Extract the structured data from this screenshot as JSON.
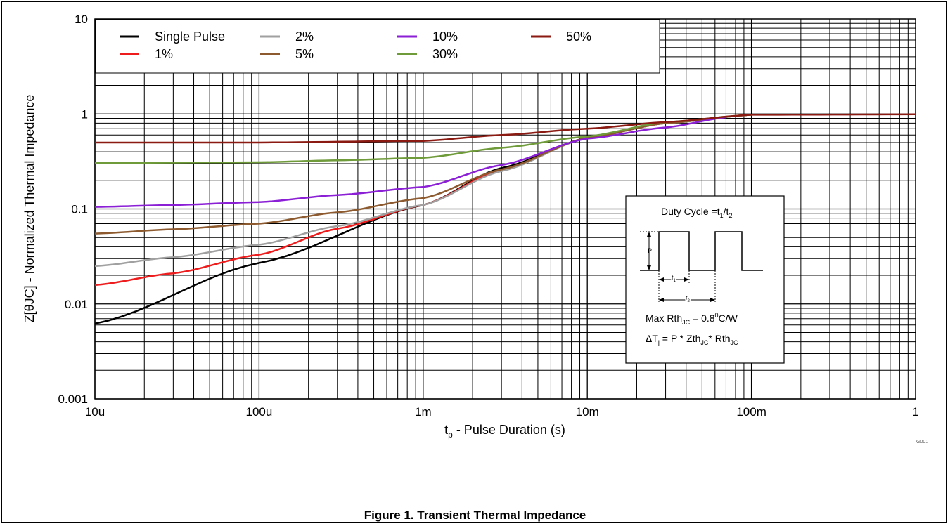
{
  "chart_data": {
    "type": "line",
    "xlabel": "t",
    "xlabel_sub": "p",
    "xlabel_rest": " - Pulse Duration (s)",
    "ylabel": "Z[θJC] - Normalized Thermal Impedance",
    "x_scale": "log",
    "y_scale": "log",
    "xlim": [
      1e-05,
      1
    ],
    "ylim": [
      0.001,
      10
    ],
    "x_ticks": [
      {
        "value": 1e-05,
        "label": "10u"
      },
      {
        "value": 0.0001,
        "label": "100u"
      },
      {
        "value": 0.001,
        "label": "1m"
      },
      {
        "value": 0.01,
        "label": "10m"
      },
      {
        "value": 0.1,
        "label": "100m"
      },
      {
        "value": 1,
        "label": "1"
      }
    ],
    "y_ticks": [
      {
        "value": 0.001,
        "label": "0.001"
      },
      {
        "value": 0.01,
        "label": "0.01"
      },
      {
        "value": 0.1,
        "label": "0.1"
      },
      {
        "value": 1,
        "label": "1"
      },
      {
        "value": 10,
        "label": "10"
      }
    ],
    "grid": true,
    "legend_position": "top-left",
    "series": [
      {
        "name": "Single Pulse",
        "color": "#000000",
        "x": [
          1e-05,
          0.0001,
          0.001,
          0.003,
          0.01,
          0.03,
          0.1
        ],
        "y": [
          0.0062,
          0.027,
          0.11,
          0.27,
          0.56,
          0.8,
          0.98
        ]
      },
      {
        "name": "1%",
        "color": "#ee1c1c",
        "x": [
          1e-05,
          3e-05,
          0.0001,
          0.0003,
          0.001,
          0.003,
          0.01,
          0.03,
          0.1
        ],
        "y": [
          0.0158,
          0.021,
          0.033,
          0.062,
          0.11,
          0.26,
          0.56,
          0.8,
          0.98
        ]
      },
      {
        "name": "2%",
        "color": "#a0a0a0",
        "x": [
          1e-05,
          3e-05,
          0.0001,
          0.0003,
          0.001,
          0.003,
          0.01,
          0.03,
          0.1
        ],
        "y": [
          0.025,
          0.031,
          0.042,
          0.066,
          0.11,
          0.25,
          0.56,
          0.8,
          0.98
        ]
      },
      {
        "name": "5%",
        "color": "#8c5a2e",
        "x": [
          1e-05,
          3e-05,
          0.0001,
          0.0003,
          0.001,
          0.003,
          0.01,
          0.03,
          0.1
        ],
        "y": [
          0.055,
          0.061,
          0.07,
          0.092,
          0.13,
          0.26,
          0.56,
          0.8,
          0.98
        ]
      },
      {
        "name": "10%",
        "color": "#8b1fd6",
        "x": [
          1e-05,
          3e-05,
          0.0001,
          0.0003,
          0.001,
          0.003,
          0.01,
          0.03,
          0.07
        ],
        "y": [
          0.105,
          0.11,
          0.118,
          0.14,
          0.17,
          0.29,
          0.55,
          0.72,
          0.92
        ]
      },
      {
        "name": "30%",
        "color": "#6f9b3a",
        "x": [
          1e-05,
          0.0001,
          0.0003,
          0.001,
          0.003,
          0.01,
          0.03,
          0.1
        ],
        "y": [
          0.305,
          0.31,
          0.325,
          0.345,
          0.44,
          0.58,
          0.82,
          0.98
        ]
      },
      {
        "name": "50%",
        "color": "#8b1a12",
        "x": [
          1e-05,
          0.0001,
          0.001,
          0.003,
          0.01,
          0.03,
          0.1,
          1
        ],
        "y": [
          0.5,
          0.5,
          0.52,
          0.6,
          0.7,
          0.82,
          0.98,
          0.99
        ]
      }
    ]
  },
  "inset": {
    "title_main": "Duty Cycle =t",
    "title_sub1": "1",
    "title_mid": "/t",
    "title_sub2": "2",
    "p_label": "P",
    "t1_label": "t",
    "t1_sub": "1",
    "t2_label": "t",
    "t2_sub": "2",
    "rth_main": "Max Rth",
    "rth_sub": "JC",
    "rth_eq": " = 0.8",
    "rth_sup": "0",
    "rth_unit": "C/W",
    "dt_main": "ΔT",
    "dt_sub": "j",
    "dt_eq": " = P * Zth",
    "dt_sub2": "JC",
    "dt_mid": "* Rth",
    "dt_sub3": "JC"
  },
  "figure_caption": "Figure 1.  Transient Thermal Impedance",
  "figure_code": "G001"
}
